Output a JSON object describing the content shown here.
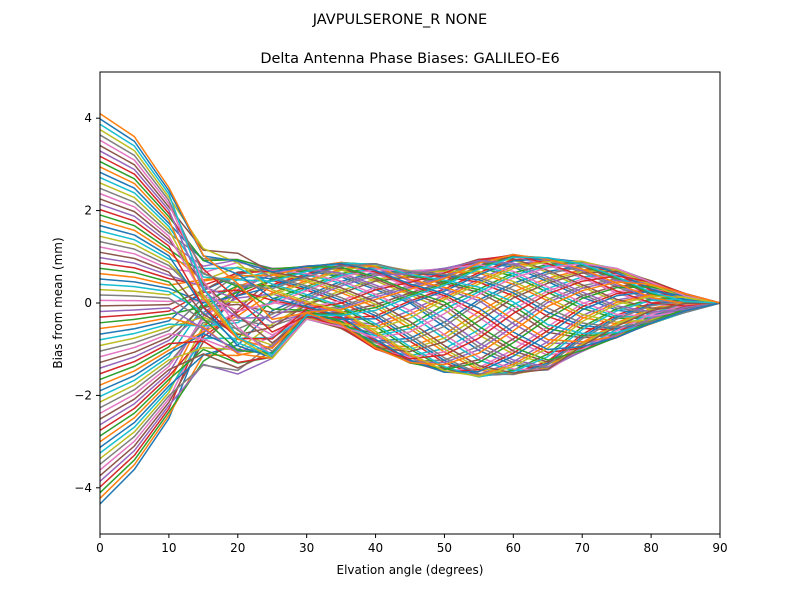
{
  "chart_data": {
    "type": "line",
    "suptitle": "JAVPULSERONE_R  NONE",
    "title": "Delta Antenna Phase Biases: GALILEO-E6",
    "xlabel": "Elvation angle (degrees)",
    "ylabel": "Bias from mean (mm)",
    "xlim": [
      0,
      90
    ],
    "ylim": [
      -5,
      5
    ],
    "xticks": [
      0,
      10,
      20,
      30,
      40,
      50,
      60,
      70,
      80,
      90
    ],
    "yticks": [
      -4,
      -2,
      0,
      2,
      4
    ],
    "x": [
      0,
      5,
      10,
      15,
      20,
      25,
      30,
      35,
      40,
      45,
      50,
      55,
      60,
      65,
      70,
      75,
      80,
      85,
      90
    ],
    "series_count": 72,
    "grid": false,
    "legend": "none",
    "palette": [
      "#1f77b4",
      "#ff7f0e",
      "#2ca02c",
      "#d62728",
      "#9467bd",
      "#8c564b",
      "#e377c2",
      "#7f7f7f",
      "#bcbd22",
      "#17becf"
    ],
    "envelope_note_values": {
      "start_range": [
        -4.35,
        4.1
      ],
      "at_5": [
        -3.6,
        3.6
      ],
      "at_20": [
        -1.65,
        1.2
      ],
      "at_30": [
        -0.35,
        0.8
      ],
      "at_40": [
        -1.0,
        0.9
      ],
      "at_60": [
        -1.55,
        1.05
      ],
      "end_value": 0
    }
  }
}
